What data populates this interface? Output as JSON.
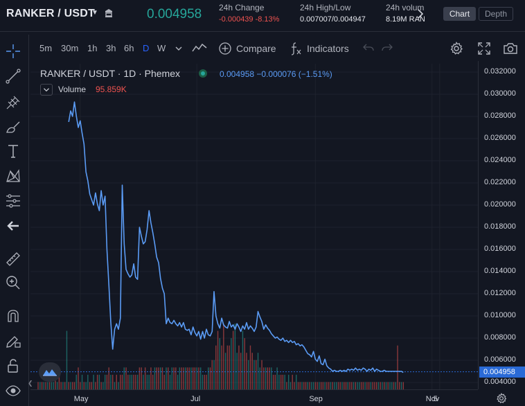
{
  "header": {
    "pair": "RANKER / USDT",
    "last_price": "0.004958",
    "change_label": "24h Change",
    "change_value": "-0.000439 -8.13%",
    "highlow_label": "24h High/Low",
    "highlow_value": "0.007007/0.004947",
    "volume_label": "24h volum",
    "volume_value": "8.19M RAN",
    "chart_tab": "Chart",
    "depth_tab": "Depth"
  },
  "toolbar": {
    "intervals": [
      "5m",
      "30m",
      "1h",
      "3h",
      "6h",
      "D",
      "W"
    ],
    "active_interval": "D",
    "compare_label": "Compare",
    "indicators_label": "Indicators"
  },
  "legend": {
    "symbol": "RANKER / USDT · 1D · Phemex",
    "price": "0.004958  −0.000076 (−1.51%)",
    "volume_label": "Volume",
    "volume_value": "95.859K"
  },
  "colors": {
    "line": "#5b9cf6",
    "up": "#26a69a",
    "down": "#ef5350",
    "last_price_tag": "#2a6ad6",
    "background": "#131722"
  },
  "chart_data": {
    "type": "line",
    "ylim": [
      0.003,
      0.033
    ],
    "price_ticks": [
      "0.032000",
      "0.030000",
      "0.028000",
      "0.026000",
      "0.024000",
      "0.022000",
      "0.020000",
      "0.018000",
      "0.016000",
      "0.014000",
      "0.012000",
      "0.010000",
      "0.008000",
      "0.006000",
      "0.004000"
    ],
    "last_price_label": "0.004958",
    "last_price_value": 0.004958,
    "time_ticks": [
      {
        "label": "May",
        "day": 122
      },
      {
        "label": "Jul",
        "day": 183
      },
      {
        "label": "Sep",
        "day": 245
      },
      {
        "label": "Nov",
        "day": 306
      },
      {
        "label": "5",
        "day": 310
      }
    ],
    "xlim_day": [
      96,
      330
    ],
    "series": [
      {
        "type": "line",
        "x_day": [
          116,
          117,
          118,
          119,
          120,
          121,
          122,
          123,
          124,
          125,
          126,
          127,
          128,
          129,
          130,
          131,
          132,
          133,
          134,
          135,
          136,
          137,
          138,
          139,
          140,
          141,
          142,
          143,
          144,
          145,
          146,
          147,
          148,
          149,
          150,
          151,
          152,
          153,
          154,
          155,
          156,
          157,
          158,
          159,
          160,
          161,
          162,
          163,
          164,
          165,
          166,
          167,
          168,
          169,
          170,
          171,
          172,
          173,
          174,
          175,
          176,
          177,
          178,
          179,
          180,
          181,
          182,
          183,
          184,
          185,
          186,
          187,
          188,
          189,
          190,
          191,
          192,
          193,
          194,
          195,
          196,
          197,
          198,
          199,
          200,
          201,
          202,
          203,
          204,
          205,
          206,
          207,
          208,
          209,
          210,
          211,
          212,
          213,
          214,
          215,
          216,
          217,
          218,
          219,
          220,
          221,
          222,
          223,
          224,
          225,
          226,
          227,
          228,
          229,
          230,
          231,
          232,
          233,
          234,
          235,
          236,
          237,
          238,
          239,
          240,
          241,
          242,
          243,
          244,
          245,
          246,
          247,
          248,
          249,
          250,
          251,
          252,
          253,
          254,
          255,
          256,
          257,
          258,
          259,
          260,
          261,
          262,
          263,
          264,
          265,
          266,
          267,
          268,
          269,
          270,
          271,
          272,
          273,
          274,
          275,
          276,
          277,
          278,
          279,
          280,
          281,
          282,
          283,
          284,
          285,
          286,
          287,
          288,
          289,
          290,
          291
        ],
        "values": [
          0.0275,
          0.0285,
          0.028,
          0.0293,
          0.028,
          0.027,
          0.0276,
          0.0265,
          0.0255,
          0.023,
          0.0222,
          0.021,
          0.0205,
          0.02,
          0.0211,
          0.0201,
          0.0195,
          0.0213,
          0.02,
          0.0208,
          0.016,
          0.0128,
          0.0095,
          0.007,
          0.0088,
          0.0093,
          0.0088,
          0.0098,
          0.0218,
          0.0165,
          0.0142,
          0.0138,
          0.0135,
          0.0137,
          0.0147,
          0.0135,
          0.0133,
          0.018,
          0.0172,
          0.0165,
          0.0167,
          0.0178,
          0.0195,
          0.0184,
          0.0175,
          0.0165,
          0.0153,
          0.0148,
          0.0134,
          0.0125,
          0.012,
          0.0093,
          0.0098,
          0.0094,
          0.0093,
          0.0096,
          0.0093,
          0.0091,
          0.0094,
          0.009,
          0.0094,
          0.0088,
          0.0087,
          0.0088,
          0.0083,
          0.009,
          0.0085,
          0.0082,
          0.0086,
          0.0079,
          0.0086,
          0.008,
          0.0088,
          0.0083,
          0.0082,
          0.0086,
          0.0122,
          0.01,
          0.0093,
          0.0089,
          0.0098,
          0.0092,
          0.009,
          0.0089,
          0.0095,
          0.009,
          0.0092,
          0.0088,
          0.0093,
          0.009,
          0.0086,
          0.0091,
          0.0088,
          0.0094,
          0.0088,
          0.0091,
          0.0089,
          0.0086,
          0.009,
          0.0104,
          0.0099,
          0.0095,
          0.0088,
          0.0092,
          0.0089,
          0.0087,
          0.0084,
          0.0082,
          0.008,
          0.0081,
          0.0079,
          0.0078,
          0.008,
          0.0077,
          0.0078,
          0.0076,
          0.0078,
          0.0076,
          0.0077,
          0.0074,
          0.0075,
          0.0073,
          0.0074,
          0.0072,
          0.0069,
          0.0066,
          0.0065,
          0.0063,
          0.0068,
          0.0061,
          0.0059,
          0.0064,
          0.0057,
          0.0056,
          0.0061,
          0.0055,
          0.0053,
          0.0052,
          0.005,
          0.0051,
          0.005,
          0.005,
          0.0051,
          0.005,
          0.0051,
          0.005,
          0.0052,
          0.0051,
          0.0052,
          0.0051,
          0.0053,
          0.0051,
          0.0052,
          0.0051,
          0.0053,
          0.0052,
          0.005,
          0.0052,
          0.0051,
          0.0053,
          0.005,
          0.0052,
          0.0051,
          0.005,
          0.005,
          0.0051,
          0.005,
          0.005,
          0.005,
          0.005,
          0.005,
          0.005,
          0.005,
          0.005,
          0.005,
          0.0049
        ]
      }
    ],
    "volume": {
      "color_up": "#26a69a",
      "color_down": "#ef5350",
      "start_day": 100,
      "values": [
        1,
        1,
        1,
        1,
        1,
        1,
        1,
        1,
        1,
        2,
        1,
        2,
        1,
        1,
        1,
        8,
        1,
        1,
        1,
        1,
        2,
        3,
        1,
        2,
        1,
        1,
        2,
        1,
        1,
        2,
        1,
        2,
        2,
        1,
        1,
        2,
        2,
        3,
        2,
        2,
        1,
        2,
        1,
        2,
        2,
        3,
        3,
        2,
        2,
        2,
        2,
        2,
        2,
        3,
        3,
        2,
        3,
        2,
        2,
        3,
        2,
        3,
        3,
        3,
        3,
        3,
        2,
        3,
        3,
        2,
        3,
        3,
        3,
        2,
        3,
        3,
        3,
        3,
        3,
        3,
        3,
        3,
        3,
        3,
        3,
        3,
        2,
        2,
        2,
        3,
        3,
        4,
        4,
        6,
        8,
        7,
        6,
        9,
        5,
        6,
        6,
        7,
        8,
        9,
        5,
        6,
        5,
        8,
        7,
        5,
        4,
        6,
        5,
        4,
        4,
        5,
        3,
        4,
        3,
        3,
        3,
        3,
        3,
        2,
        2,
        3,
        2,
        2,
        2,
        2,
        1,
        2,
        1,
        2,
        1,
        2,
        1,
        1,
        1,
        1,
        1,
        1,
        1,
        1,
        1,
        1,
        1,
        1,
        1,
        1,
        1,
        1,
        1,
        1,
        1,
        1,
        1,
        1,
        1,
        1,
        1,
        1,
        1,
        1,
        1,
        1,
        1,
        1,
        1,
        1,
        1,
        1,
        1,
        1,
        1,
        1,
        1,
        1,
        1,
        1,
        1,
        1,
        1,
        1,
        1,
        1,
        1,
        1,
        6,
        1,
        1,
        1
      ],
      "directions": "dudududuududdudududdudduduuddudduduuddudududdudduuddudduduudduddudduduudduudduddudduduudduddudduddudduduudduddudduduudduddudduudduduudduddudduduudduddudduduudduddudduduudduddudd"
    }
  }
}
